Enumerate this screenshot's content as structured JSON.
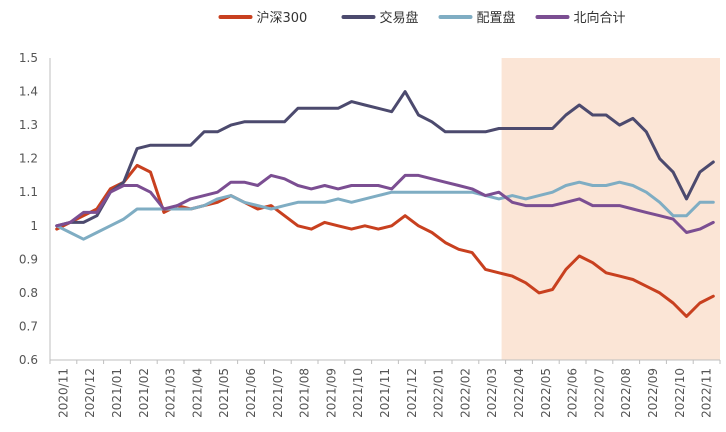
{
  "chart_data": {
    "type": "line",
    "title": "",
    "xlabel": "",
    "ylabel": "",
    "ylim": [
      0.6,
      1.5
    ],
    "yticks": [
      "0.6",
      "0.7",
      "0.8",
      "0.9",
      "1",
      "1.1",
      "1.2",
      "1.3",
      "1.4",
      "1.5"
    ],
    "categories": [
      "2020/11",
      "2020/12",
      "2021/01",
      "2021/02",
      "2021/03",
      "2021/04",
      "2021/05",
      "2021/06",
      "2021/07",
      "2021/08",
      "2021/09",
      "2021/10",
      "2021/11",
      "2021/12",
      "2022/01",
      "2022/02",
      "2022/03",
      "2022/04",
      "2022/05",
      "2022/06",
      "2022/07",
      "2022/08",
      "2022/09",
      "2022/10",
      "2022/11"
    ],
    "highlight_band": {
      "from": "2022/03",
      "to": "2022/11",
      "color": "#fbe5d6"
    },
    "legend_position": "top",
    "grid": false,
    "series": [
      {
        "name": "沪深300",
        "color": "#c8401f",
        "values": [
          [
            "2020/11",
            0.99
          ],
          [
            "2020/11",
            1.01
          ],
          [
            "2020/12",
            1.03
          ],
          [
            "2020/12",
            1.05
          ],
          [
            "2021/01",
            1.11
          ],
          [
            "2021/01",
            1.13
          ],
          [
            "2021/02",
            1.18
          ],
          [
            "2021/02",
            1.16
          ],
          [
            "2021/03",
            1.04
          ],
          [
            "2021/03",
            1.06
          ],
          [
            "2021/04",
            1.05
          ],
          [
            "2021/04",
            1.06
          ],
          [
            "2021/05",
            1.07
          ],
          [
            "2021/05",
            1.09
          ],
          [
            "2021/06",
            1.07
          ],
          [
            "2021/06",
            1.05
          ],
          [
            "2021/07",
            1.06
          ],
          [
            "2021/07",
            1.03
          ],
          [
            "2021/08",
            1.0
          ],
          [
            "2021/08",
            0.99
          ],
          [
            "2021/09",
            1.01
          ],
          [
            "2021/09",
            1.0
          ],
          [
            "2021/10",
            0.99
          ],
          [
            "2021/10",
            1.0
          ],
          [
            "2021/11",
            0.99
          ],
          [
            "2021/11",
            1.0
          ],
          [
            "2021/12",
            1.03
          ],
          [
            "2021/12",
            1.0
          ],
          [
            "2022/01",
            0.98
          ],
          [
            "2022/01",
            0.95
          ],
          [
            "2022/02",
            0.93
          ],
          [
            "2022/02",
            0.92
          ],
          [
            "2022/03",
            0.87
          ],
          [
            "2022/03",
            0.86
          ],
          [
            "2022/04",
            0.85
          ],
          [
            "2022/04",
            0.83
          ],
          [
            "2022/05",
            0.8
          ],
          [
            "2022/05",
            0.81
          ],
          [
            "2022/06",
            0.87
          ],
          [
            "2022/06",
            0.91
          ],
          [
            "2022/07",
            0.89
          ],
          [
            "2022/07",
            0.86
          ],
          [
            "2022/08",
            0.85
          ],
          [
            "2022/08",
            0.84
          ],
          [
            "2022/09",
            0.82
          ],
          [
            "2022/09",
            0.8
          ],
          [
            "2022/10",
            0.77
          ],
          [
            "2022/10",
            0.73
          ],
          [
            "2022/11",
            0.77
          ],
          [
            "2022/11",
            0.79
          ]
        ]
      },
      {
        "name": "交易盘",
        "color": "#4c4a6e",
        "values": [
          [
            "2020/11",
            1.0
          ],
          [
            "2020/11",
            1.01
          ],
          [
            "2020/12",
            1.01
          ],
          [
            "2020/12",
            1.03
          ],
          [
            "2021/01",
            1.1
          ],
          [
            "2021/01",
            1.13
          ],
          [
            "2021/02",
            1.23
          ],
          [
            "2021/02",
            1.24
          ],
          [
            "2021/03",
            1.24
          ],
          [
            "2021/03",
            1.24
          ],
          [
            "2021/04",
            1.24
          ],
          [
            "2021/04",
            1.28
          ],
          [
            "2021/05",
            1.28
          ],
          [
            "2021/05",
            1.3
          ],
          [
            "2021/06",
            1.31
          ],
          [
            "2021/06",
            1.31
          ],
          [
            "2021/07",
            1.31
          ],
          [
            "2021/07",
            1.31
          ],
          [
            "2021/08",
            1.35
          ],
          [
            "2021/08",
            1.35
          ],
          [
            "2021/09",
            1.35
          ],
          [
            "2021/09",
            1.35
          ],
          [
            "2021/10",
            1.37
          ],
          [
            "2021/10",
            1.36
          ],
          [
            "2021/11",
            1.35
          ],
          [
            "2021/11",
            1.34
          ],
          [
            "2021/12",
            1.4
          ],
          [
            "2021/12",
            1.33
          ],
          [
            "2022/01",
            1.31
          ],
          [
            "2022/01",
            1.28
          ],
          [
            "2022/02",
            1.28
          ],
          [
            "2022/02",
            1.28
          ],
          [
            "2022/03",
            1.28
          ],
          [
            "2022/03",
            1.29
          ],
          [
            "2022/04",
            1.29
          ],
          [
            "2022/04",
            1.29
          ],
          [
            "2022/05",
            1.29
          ],
          [
            "2022/05",
            1.29
          ],
          [
            "2022/06",
            1.33
          ],
          [
            "2022/06",
            1.36
          ],
          [
            "2022/07",
            1.33
          ],
          [
            "2022/07",
            1.33
          ],
          [
            "2022/08",
            1.3
          ],
          [
            "2022/08",
            1.32
          ],
          [
            "2022/09",
            1.28
          ],
          [
            "2022/09",
            1.2
          ],
          [
            "2022/10",
            1.16
          ],
          [
            "2022/10",
            1.08
          ],
          [
            "2022/11",
            1.16
          ],
          [
            "2022/11",
            1.19
          ]
        ]
      },
      {
        "name": "配置盘",
        "color": "#7fadc3",
        "values": [
          [
            "2020/11",
            1.0
          ],
          [
            "2020/11",
            0.98
          ],
          [
            "2020/12",
            0.96
          ],
          [
            "2020/12",
            0.98
          ],
          [
            "2021/01",
            1.0
          ],
          [
            "2021/01",
            1.02
          ],
          [
            "2021/02",
            1.05
          ],
          [
            "2021/02",
            1.05
          ],
          [
            "2021/03",
            1.05
          ],
          [
            "2021/03",
            1.05
          ],
          [
            "2021/04",
            1.05
          ],
          [
            "2021/04",
            1.06
          ],
          [
            "2021/05",
            1.08
          ],
          [
            "2021/05",
            1.09
          ],
          [
            "2021/06",
            1.07
          ],
          [
            "2021/06",
            1.06
          ],
          [
            "2021/07",
            1.05
          ],
          [
            "2021/07",
            1.06
          ],
          [
            "2021/08",
            1.07
          ],
          [
            "2021/08",
            1.07
          ],
          [
            "2021/09",
            1.07
          ],
          [
            "2021/09",
            1.08
          ],
          [
            "2021/10",
            1.07
          ],
          [
            "2021/10",
            1.08
          ],
          [
            "2021/11",
            1.09
          ],
          [
            "2021/11",
            1.1
          ],
          [
            "2021/12",
            1.1
          ],
          [
            "2021/12",
            1.1
          ],
          [
            "2022/01",
            1.1
          ],
          [
            "2022/01",
            1.1
          ],
          [
            "2022/02",
            1.1
          ],
          [
            "2022/02",
            1.1
          ],
          [
            "2022/03",
            1.09
          ],
          [
            "2022/03",
            1.08
          ],
          [
            "2022/04",
            1.09
          ],
          [
            "2022/04",
            1.08
          ],
          [
            "2022/05",
            1.09
          ],
          [
            "2022/05",
            1.1
          ],
          [
            "2022/06",
            1.12
          ],
          [
            "2022/06",
            1.13
          ],
          [
            "2022/07",
            1.12
          ],
          [
            "2022/07",
            1.12
          ],
          [
            "2022/08",
            1.13
          ],
          [
            "2022/08",
            1.12
          ],
          [
            "2022/09",
            1.1
          ],
          [
            "2022/09",
            1.07
          ],
          [
            "2022/10",
            1.03
          ],
          [
            "2022/10",
            1.03
          ],
          [
            "2022/11",
            1.07
          ],
          [
            "2022/11",
            1.07
          ]
        ]
      },
      {
        "name": "北向合计",
        "color": "#7b4e92",
        "values": [
          [
            "2020/11",
            1.0
          ],
          [
            "2020/11",
            1.01
          ],
          [
            "2020/12",
            1.04
          ],
          [
            "2020/12",
            1.04
          ],
          [
            "2021/01",
            1.1
          ],
          [
            "2021/01",
            1.12
          ],
          [
            "2021/02",
            1.12
          ],
          [
            "2021/02",
            1.1
          ],
          [
            "2021/03",
            1.05
          ],
          [
            "2021/03",
            1.06
          ],
          [
            "2021/04",
            1.08
          ],
          [
            "2021/04",
            1.09
          ],
          [
            "2021/05",
            1.1
          ],
          [
            "2021/05",
            1.13
          ],
          [
            "2021/06",
            1.13
          ],
          [
            "2021/06",
            1.12
          ],
          [
            "2021/07",
            1.15
          ],
          [
            "2021/07",
            1.14
          ],
          [
            "2021/08",
            1.12
          ],
          [
            "2021/08",
            1.11
          ],
          [
            "2021/09",
            1.12
          ],
          [
            "2021/09",
            1.11
          ],
          [
            "2021/10",
            1.12
          ],
          [
            "2021/10",
            1.12
          ],
          [
            "2021/11",
            1.12
          ],
          [
            "2021/11",
            1.11
          ],
          [
            "2021/12",
            1.15
          ],
          [
            "2021/12",
            1.15
          ],
          [
            "2022/01",
            1.14
          ],
          [
            "2022/01",
            1.13
          ],
          [
            "2022/02",
            1.12
          ],
          [
            "2022/02",
            1.11
          ],
          [
            "2022/03",
            1.09
          ],
          [
            "2022/03",
            1.1
          ],
          [
            "2022/04",
            1.07
          ],
          [
            "2022/04",
            1.06
          ],
          [
            "2022/05",
            1.06
          ],
          [
            "2022/05",
            1.06
          ],
          [
            "2022/06",
            1.07
          ],
          [
            "2022/06",
            1.08
          ],
          [
            "2022/07",
            1.06
          ],
          [
            "2022/07",
            1.06
          ],
          [
            "2022/08",
            1.06
          ],
          [
            "2022/08",
            1.05
          ],
          [
            "2022/09",
            1.04
          ],
          [
            "2022/09",
            1.03
          ],
          [
            "2022/10",
            1.02
          ],
          [
            "2022/10",
            0.98
          ],
          [
            "2022/11",
            0.99
          ],
          [
            "2022/11",
            1.01
          ]
        ]
      }
    ]
  }
}
